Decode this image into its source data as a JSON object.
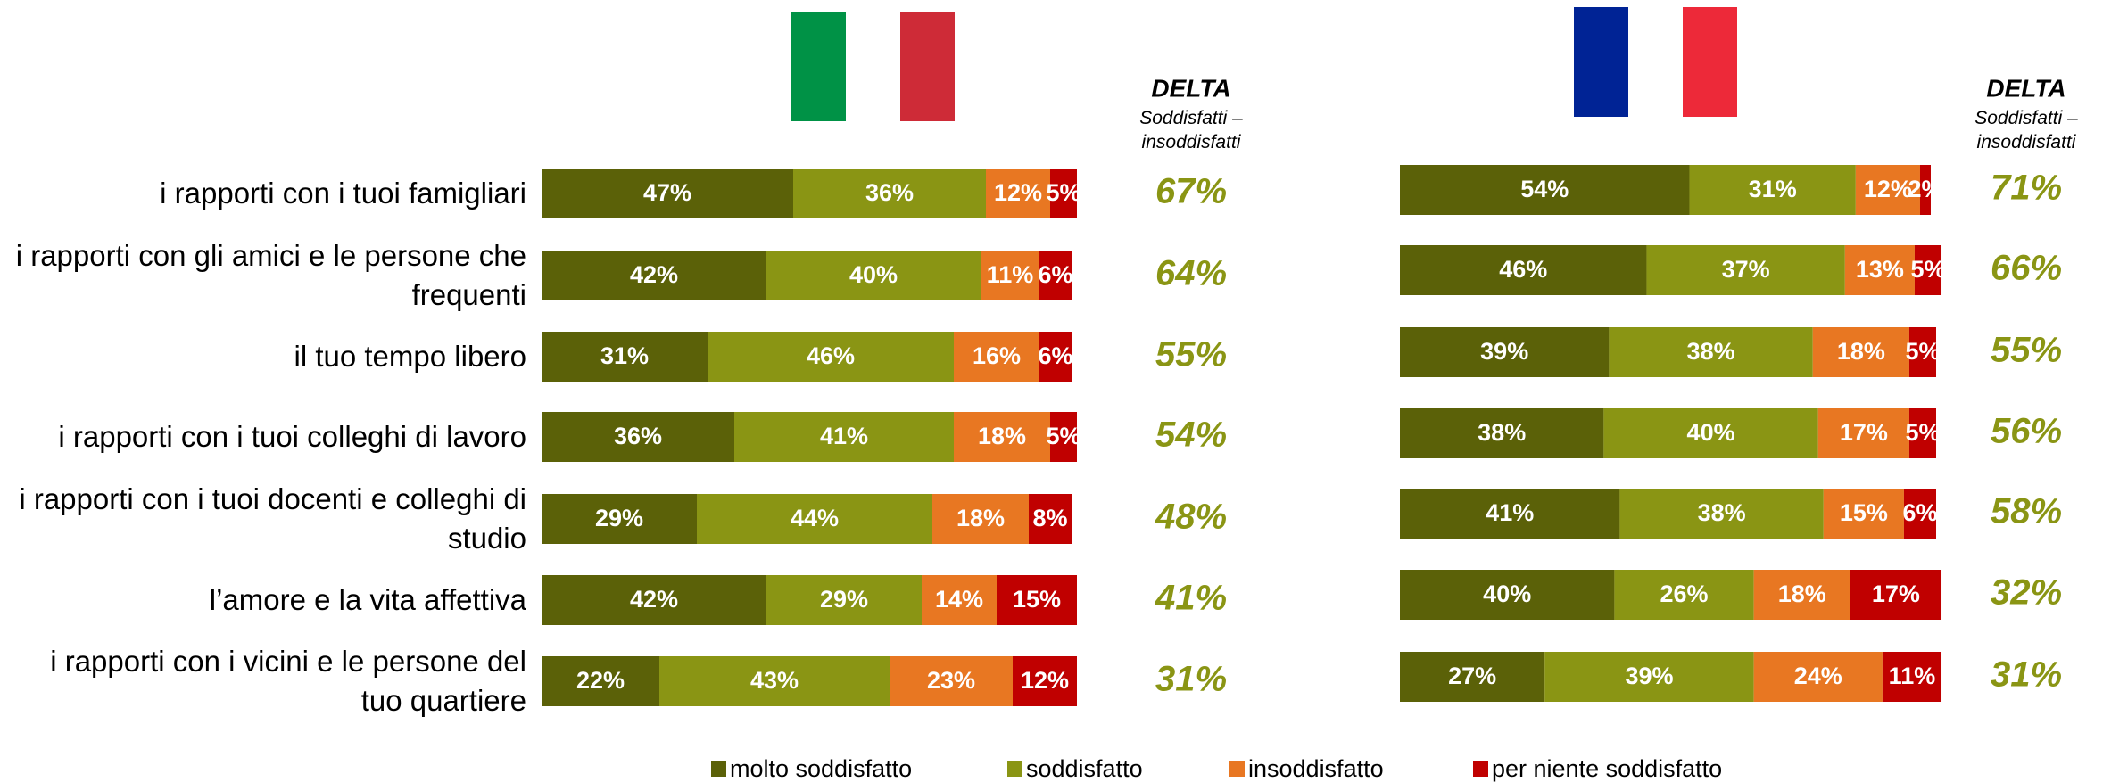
{
  "chart_data": [
    {
      "type": "bar",
      "orientation": "horizontal",
      "stacked": true,
      "xlim": [
        0,
        100
      ],
      "categories": [
        "i rapporti con i tuoi famigliari",
        "i rapporti con gli amici e le persone che frequenti",
        "il tuo tempo libero",
        "i rapporti con i tuoi colleghi di lavoro",
        "i rapporti con i tuoi docenti e colleghi di studio",
        "l’amore e la vita affettiva",
        "i rapporti con i vicini e le persone del tuo quartiere"
      ],
      "series": [
        {
          "name": "molto soddisfatto",
          "color": "#5b6108",
          "values": [
            47,
            42,
            31,
            36,
            29,
            42,
            22
          ],
          "value_labels": [
            "47%",
            "42%",
            "31%",
            "36%",
            "29%",
            "42%",
            "22%"
          ]
        },
        {
          "name": "soddisfatto",
          "color": "#8a9514",
          "values": [
            36,
            40,
            46,
            41,
            44,
            29,
            43
          ],
          "value_labels": [
            "36%",
            "40%",
            "46%",
            "41%",
            "44%",
            "29%",
            "43%"
          ]
        },
        {
          "name": "insoddisfatto",
          "color": "#e87722",
          "values": [
            12,
            11,
            16,
            18,
            18,
            14,
            23
          ],
          "value_labels": [
            "12%",
            "11%",
            "16%",
            "18%",
            "18%",
            "14%",
            "23%"
          ]
        },
        {
          "name": "per niente soddisfatto",
          "color": "#c00000",
          "values": [
            5,
            6,
            6,
            5,
            8,
            15,
            12
          ],
          "value_labels": [
            "5%",
            "6%",
            "6%",
            "5%",
            "8%",
            "15%",
            "12%"
          ]
        }
      ],
      "delta": {
        "title": "DELTA",
        "subtitle": "Soddisfatti – insoddisfatti",
        "color": "#8a9514",
        "values": [
          67,
          64,
          55,
          54,
          48,
          41,
          31
        ],
        "value_labels": [
          "67%",
          "64%",
          "55%",
          "54%",
          "48%",
          "41%",
          "31%"
        ]
      }
    },
    {
      "type": "bar",
      "orientation": "horizontal",
      "stacked": true,
      "xlim": [
        0,
        100
      ],
      "series": [
        {
          "name": "molto soddisfatto",
          "color": "#5b6108",
          "values": [
            54,
            46,
            39,
            38,
            41,
            40,
            27
          ],
          "value_labels": [
            "54%",
            "46%",
            "39%",
            "38%",
            "41%",
            "40%",
            "27%"
          ]
        },
        {
          "name": "soddisfatto",
          "color": "#8a9514",
          "values": [
            31,
            37,
            38,
            40,
            38,
            26,
            39
          ],
          "value_labels": [
            "31%",
            "37%",
            "38%",
            "40%",
            "38%",
            "26%",
            "39%"
          ]
        },
        {
          "name": "insoddisfatto",
          "color": "#e87722",
          "values": [
            12,
            13,
            18,
            17,
            15,
            18,
            24
          ],
          "value_labels": [
            "12%",
            "13%",
            "18%",
            "17%",
            "15%",
            "18%",
            "24%"
          ]
        },
        {
          "name": "per niente soddisfatto",
          "color": "#c00000",
          "values": [
            2,
            5,
            5,
            5,
            6,
            17,
            11
          ],
          "value_labels": [
            "2%",
            "5%",
            "5%",
            "5%",
            "6%",
            "17%",
            "11%"
          ]
        }
      ],
      "delta": {
        "title": "DELTA",
        "subtitle": "Soddisfatti – insoddisfatti",
        "color": "#8a9514",
        "values": [
          71,
          66,
          55,
          56,
          58,
          32,
          31
        ],
        "value_labels": [
          "71%",
          "66%",
          "55%",
          "56%",
          "58%",
          "32%",
          "31%"
        ]
      }
    }
  ]
}
